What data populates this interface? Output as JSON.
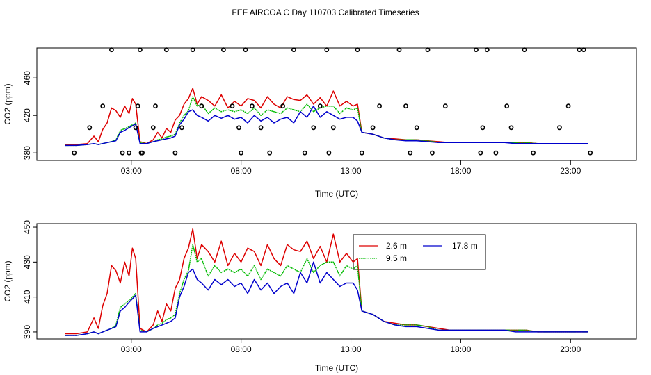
{
  "figure": {
    "title": "FEF AIRCOA C  Day 110703  Calibrated Timeseries"
  },
  "colors": {
    "s26": "#dd0000",
    "s95": "#00bb00",
    "s178": "#0000cc"
  },
  "chart_data": [
    {
      "type": "line",
      "title": "FEF AIRCOA C  Day 110703  Calibrated Timeseries",
      "xlabel": "Time (UTC)",
      "ylabel": "CO2 (ppm)",
      "xlim": [
        -1.3,
        26.0
      ],
      "ylim": [
        372,
        492
      ],
      "xticks": [
        3,
        8,
        13,
        18,
        23
      ],
      "xtick_labels": [
        "03:00",
        "08:00",
        "13:00",
        "18:00",
        "23:00"
      ],
      "yticks": [
        380,
        420,
        460
      ],
      "ytick_labels": [
        "380",
        "420",
        "460"
      ],
      "series": [
        {
          "name": "2.6 m",
          "color": "#dd0000",
          "x": [
            0.0,
            0.5,
            1.0,
            1.3,
            1.5,
            1.7,
            1.9,
            2.1,
            2.3,
            2.5,
            2.7,
            2.9,
            3.05,
            3.2,
            3.4,
            3.7,
            4.0,
            4.2,
            4.4,
            4.6,
            4.8,
            5.0,
            5.2,
            5.4,
            5.6,
            5.8,
            6.0,
            6.2,
            6.5,
            6.8,
            7.1,
            7.4,
            7.7,
            8.0,
            8.3,
            8.6,
            8.9,
            9.2,
            9.5,
            9.8,
            10.1,
            10.4,
            10.7,
            11.0,
            11.3,
            11.6,
            11.9,
            12.2,
            12.5,
            12.8,
            13.1,
            13.3,
            13.5,
            14.0,
            14.5,
            15.0,
            15.5,
            16.0,
            16.5,
            17.0,
            17.5,
            18.0,
            18.5,
            19.0,
            19.5,
            20.0,
            20.5,
            21.0,
            21.5,
            22.0,
            22.5,
            23.0,
            23.5,
            23.8
          ],
          "values": [
            389,
            389,
            390,
            398,
            392,
            405,
            412,
            428,
            425,
            418,
            430,
            422,
            438,
            432,
            392,
            390,
            394,
            402,
            396,
            406,
            402,
            415,
            420,
            432,
            438,
            449,
            432,
            440,
            436,
            430,
            442,
            428,
            435,
            430,
            438,
            436,
            428,
            440,
            432,
            428,
            440,
            437,
            436,
            442,
            432,
            439,
            430,
            446,
            430,
            435,
            430,
            432,
            402,
            400,
            396,
            395,
            394,
            394,
            393,
            392,
            391,
            391,
            391,
            391,
            391,
            391,
            391,
            391,
            390,
            390,
            390,
            390,
            390,
            390
          ]
        },
        {
          "name": "9.5 m",
          "color": "#00bb00",
          "x": [
            0.0,
            0.5,
            1.0,
            1.3,
            1.5,
            1.7,
            1.9,
            2.1,
            2.3,
            2.5,
            2.7,
            2.9,
            3.05,
            3.2,
            3.4,
            3.7,
            4.0,
            4.2,
            4.4,
            4.6,
            4.8,
            5.0,
            5.2,
            5.4,
            5.6,
            5.8,
            6.0,
            6.2,
            6.5,
            6.8,
            7.1,
            7.4,
            7.7,
            8.0,
            8.3,
            8.6,
            8.9,
            9.2,
            9.5,
            9.8,
            10.1,
            10.4,
            10.7,
            11.0,
            11.3,
            11.6,
            11.9,
            12.2,
            12.5,
            12.8,
            13.1,
            13.3,
            13.5,
            14.0,
            14.5,
            15.0,
            15.5,
            16.0,
            16.5,
            17.0,
            17.5,
            18.0,
            18.5,
            19.0,
            19.5,
            20.0,
            20.5,
            21.0,
            21.5,
            22.0,
            22.5,
            23.0,
            23.5,
            23.8
          ],
          "values": [
            388,
            388,
            389,
            390,
            389,
            390,
            391,
            392,
            394,
            404,
            406,
            408,
            410,
            412,
            391,
            390,
            392,
            394,
            395,
            397,
            398,
            400,
            412,
            420,
            425,
            440,
            430,
            432,
            422,
            428,
            424,
            426,
            424,
            426,
            422,
            428,
            420,
            426,
            424,
            422,
            428,
            426,
            424,
            432,
            424,
            428,
            430,
            430,
            422,
            428,
            426,
            428,
            402,
            400,
            396,
            394,
            394,
            394,
            393,
            391,
            391,
            391,
            391,
            391,
            391,
            391,
            391,
            391,
            390,
            390,
            390,
            390,
            390,
            390
          ]
        },
        {
          "name": "17.8 m",
          "color": "#0000cc",
          "x": [
            0.0,
            0.5,
            1.0,
            1.3,
            1.5,
            1.7,
            1.9,
            2.1,
            2.3,
            2.5,
            2.7,
            2.9,
            3.05,
            3.2,
            3.4,
            3.7,
            4.0,
            4.2,
            4.4,
            4.6,
            4.8,
            5.0,
            5.2,
            5.4,
            5.6,
            5.8,
            6.0,
            6.2,
            6.5,
            6.8,
            7.1,
            7.4,
            7.7,
            8.0,
            8.3,
            8.6,
            8.9,
            9.2,
            9.5,
            9.8,
            10.1,
            10.4,
            10.7,
            11.0,
            11.3,
            11.6,
            11.9,
            12.2,
            12.5,
            12.8,
            13.1,
            13.3,
            13.5,
            14.0,
            14.5,
            15.0,
            15.5,
            16.0,
            16.5,
            17.0,
            17.5,
            18.0,
            18.5,
            19.0,
            19.5,
            20.0,
            20.5,
            21.0,
            21.5,
            22.0,
            22.5,
            23.0,
            23.5,
            23.8
          ],
          "values": [
            388,
            388,
            389,
            390,
            389,
            390,
            391,
            392,
            393,
            402,
            404,
            407,
            409,
            411,
            390,
            390,
            392,
            393,
            394,
            395,
            396,
            398,
            410,
            416,
            424,
            426,
            420,
            418,
            414,
            420,
            417,
            420,
            416,
            418,
            412,
            420,
            414,
            418,
            412,
            416,
            418,
            412,
            424,
            418,
            430,
            418,
            424,
            420,
            416,
            418,
            418,
            414,
            402,
            400,
            396,
            394,
            393,
            393,
            392,
            391,
            391,
            391,
            391,
            391,
            391,
            391,
            390,
            390,
            390,
            390,
            390,
            390,
            390,
            390
          ]
        }
      ],
      "point_markers": {
        "description": "circles",
        "x": [
          0.4,
          1.1,
          1.7,
          2.1,
          2.6,
          2.9,
          3.2,
          3.3,
          3.4,
          3.45,
          3.5,
          4.0,
          4.1,
          4.6,
          5.0,
          5.3,
          5.8,
          6.2,
          7.2,
          7.6,
          7.9,
          8.0,
          8.2,
          8.5,
          8.9,
          9.3,
          9.9,
          10.4,
          10.9,
          11.3,
          11.6,
          11.9,
          12.0,
          12.2,
          13.3,
          13.5,
          14.0,
          14.3,
          15.2,
          15.5,
          15.7,
          16.0,
          16.5,
          16.7,
          17.3,
          18.7,
          18.9,
          19.0,
          19.2,
          19.6,
          20.1,
          20.3,
          20.9,
          21.3,
          22.5,
          22.9,
          23.4,
          23.6,
          23.9
        ],
        "y": [
          380,
          407,
          430,
          490,
          380,
          380,
          407,
          430,
          490,
          380,
          380,
          407,
          430,
          490,
          380,
          407,
          490,
          430,
          490,
          430,
          407,
          380,
          490,
          430,
          407,
          380,
          430,
          490,
          380,
          407,
          430,
          490,
          380,
          407,
          490,
          380,
          407,
          430,
          490,
          430,
          380,
          407,
          490,
          380,
          430,
          490,
          380,
          407,
          490,
          380,
          430,
          407,
          490,
          380,
          407,
          430,
          490,
          490,
          380
        ]
      }
    },
    {
      "type": "line",
      "xlabel": "Time (UTC)",
      "ylabel": "CO2 (ppm)",
      "xlim": [
        -1.3,
        26.0
      ],
      "ylim": [
        386,
        452
      ],
      "xticks": [
        3,
        8,
        13,
        18,
        23
      ],
      "xtick_labels": [
        "03:00",
        "08:00",
        "13:00",
        "18:00",
        "23:00"
      ],
      "yticks": [
        390,
        410,
        430,
        450
      ],
      "ytick_labels": [
        "390",
        "410",
        "430",
        "450"
      ],
      "legend": {
        "placement": "top-right",
        "entries": [
          "2.6 m",
          "17.8 m",
          "9.5 m"
        ]
      },
      "series_ref": "same series as panel 1"
    }
  ]
}
